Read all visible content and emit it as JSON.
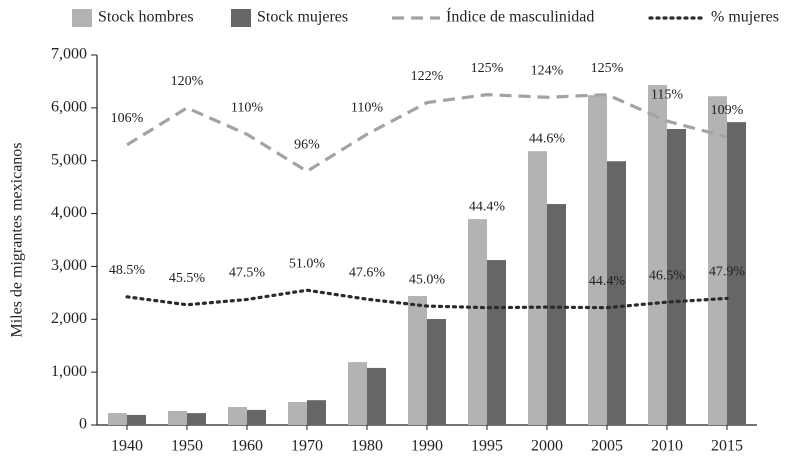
{
  "chart_data": {
    "type": "bar",
    "y_label": "Miles de migrantes mexicanos",
    "categories": [
      "1940",
      "1950",
      "1960",
      "1970",
      "1980",
      "1990",
      "1995",
      "2000",
      "2005",
      "2010",
      "2015"
    ],
    "series": [
      {
        "name": "Stock hombres",
        "color": "#b3b3b3",
        "values": [
          225,
          265,
          340,
          435,
          1190,
          2440,
          3895,
          5180,
          6240,
          6430,
          6220
        ]
      },
      {
        "name": "Stock mujeres",
        "color": "#666666",
        "values": [
          190,
          225,
          285,
          470,
          1080,
          2005,
          3120,
          4180,
          4990,
          5600,
          5730
        ]
      },
      {
        "name": "Índice de masculinidad",
        "type": "line",
        "axis": "y2",
        "style": "dashed",
        "color": "#a3a3a3",
        "values": [
          106,
          120,
          110,
          96,
          110,
          122,
          125,
          124,
          125,
          115,
          109
        ],
        "value_labels": [
          "106%",
          "120%",
          "110%",
          "96%",
          "110%",
          "122%",
          "125%",
          "124%",
          "125%",
          "115%",
          "109%"
        ]
      },
      {
        "name": "% mujeres",
        "type": "line",
        "axis": "y2",
        "style": "dotted",
        "color": "#2b2b2b",
        "values": [
          48.5,
          45.5,
          47.5,
          51.0,
          47.6,
          45.0,
          44.4,
          44.6,
          44.4,
          46.5,
          47.9
        ],
        "value_labels": [
          "48.5%",
          "45.5%",
          "47.5%",
          "51.0%",
          "47.6%",
          "45.0%",
          "44.4%",
          "44.6%",
          "44.4%",
          "46.5%",
          "47.9%"
        ]
      }
    ],
    "ylim": [
      0,
      7000
    ],
    "yticks": [
      0,
      {
        "value": 1000,
        "label": "1,000"
      },
      {
        "value": 2000,
        "label": "2,000"
      },
      {
        "value": 3000,
        "label": "3,000"
      },
      {
        "value": 4000,
        "label": "4,000"
      },
      {
        "value": 5000,
        "label": "5,000"
      },
      {
        "value": 6000,
        "label": "6,000"
      },
      {
        "value": 7000,
        "label": "7,000"
      }
    ],
    "y2lim": [
      0,
      140
    ],
    "legend": "top"
  }
}
